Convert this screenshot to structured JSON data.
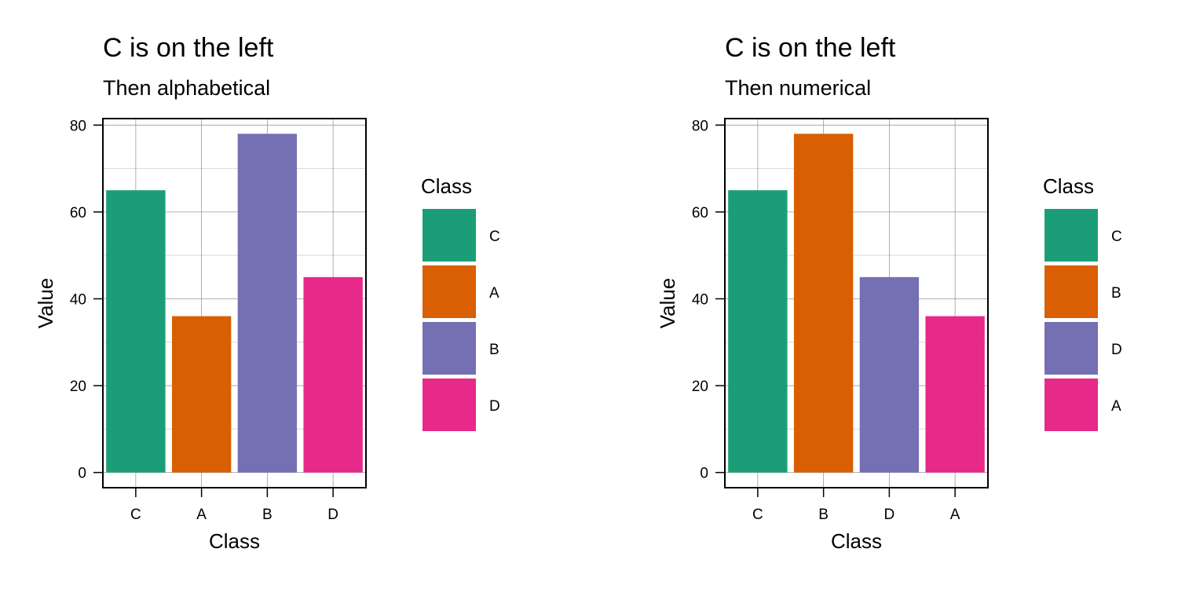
{
  "chart_data": [
    {
      "type": "bar",
      "title": "C is on the left",
      "subtitle": "Then alphabetical",
      "xlabel": "Class",
      "ylabel": "Value",
      "categories": [
        "C",
        "A",
        "B",
        "D"
      ],
      "values": [
        65,
        36,
        78,
        45
      ],
      "colors": [
        "#1b9e77",
        "#d95f02",
        "#7570b3",
        "#e7298a"
      ],
      "ylim": [
        -3.5,
        81.5
      ],
      "yticks": [
        0,
        20,
        40,
        60,
        80
      ],
      "grid": true,
      "legend": {
        "title": "Class",
        "position": "right",
        "items": [
          {
            "label": "C",
            "color": "#1b9e77"
          },
          {
            "label": "A",
            "color": "#d95f02"
          },
          {
            "label": "B",
            "color": "#7570b3"
          },
          {
            "label": "D",
            "color": "#e7298a"
          }
        ]
      }
    },
    {
      "type": "bar",
      "title": "C is on the left",
      "subtitle": "Then numerical",
      "xlabel": "Class",
      "ylabel": "Value",
      "categories": [
        "C",
        "B",
        "D",
        "A"
      ],
      "values": [
        65,
        78,
        45,
        36
      ],
      "colors": [
        "#1b9e77",
        "#d95f02",
        "#7570b3",
        "#e7298a"
      ],
      "ylim": [
        -3.5,
        81.5
      ],
      "yticks": [
        0,
        20,
        40,
        60,
        80
      ],
      "grid": true,
      "legend": {
        "title": "Class",
        "position": "right",
        "items": [
          {
            "label": "C",
            "color": "#1b9e77"
          },
          {
            "label": "B",
            "color": "#d95f02"
          },
          {
            "label": "D",
            "color": "#7570b3"
          },
          {
            "label": "A",
            "color": "#e7298a"
          }
        ]
      }
    }
  ]
}
